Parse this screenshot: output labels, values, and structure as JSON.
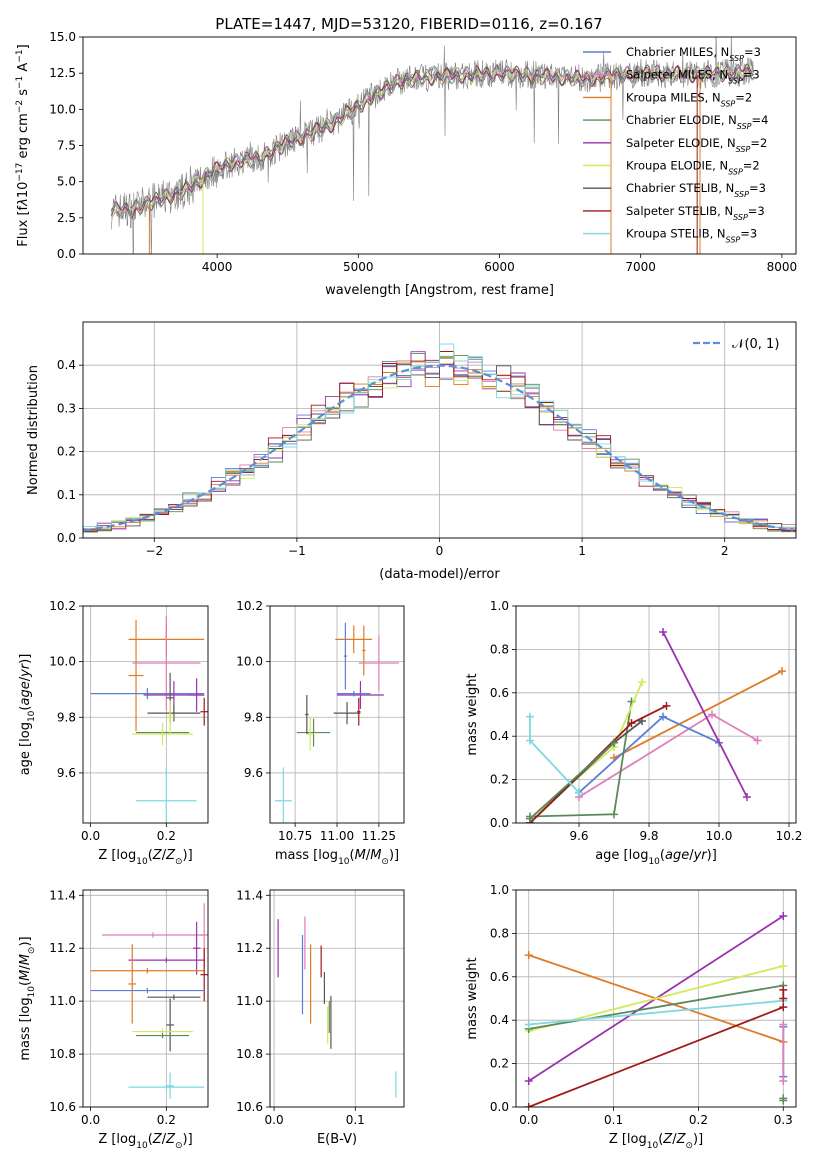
{
  "chart_data": [
    {
      "id": "spectrum",
      "type": "line",
      "title": "PLATE=1447, MJD=53120, FIBERID=0116, z=0.167",
      "xlabel": "wavelength [Angstrom, rest frame]",
      "ylabel_html": "Flux [f<tspan font-style='italic'>λ</tspan>10<tspan baseline-shift='super' font-size='9'>−17</tspan> erg cm<tspan baseline-shift='super' font-size='9'>−2</tspan> s<tspan baseline-shift='super' font-size='9'>−1</tspan> A<tspan baseline-shift='super' font-size='9'>−1</tspan>]",
      "xlim": [
        3050,
        8100
      ],
      "ylim": [
        0,
        15
      ],
      "xticks": [
        4000,
        5000,
        6000,
        7000,
        8000
      ],
      "yticks": [
        0.0,
        2.5,
        5.0,
        7.5,
        10.0,
        12.5,
        15.0
      ],
      "grid": false,
      "legend_position": "right",
      "continuum": [
        [
          3250,
          3.0
        ],
        [
          3400,
          3.1
        ],
        [
          3600,
          3.8
        ],
        [
          3800,
          4.5
        ],
        [
          3950,
          5.6
        ],
        [
          4100,
          6.3
        ],
        [
          4300,
          6.6
        ],
        [
          4500,
          7.7
        ],
        [
          4800,
          8.9
        ],
        [
          5100,
          10.9
        ],
        [
          5300,
          12.0
        ],
        [
          5600,
          12.3
        ],
        [
          6000,
          12.5
        ],
        [
          6300,
          12.3
        ],
        [
          6600,
          12.1
        ],
        [
          7000,
          12.5
        ],
        [
          7400,
          12.4
        ],
        [
          7800,
          12.6
        ]
      ],
      "observed_color": "#7f7f7f",
      "legend": [
        {
          "label": "Chabrier MILES, N",
          "sub": "SSP",
          "suffix": "=3",
          "color": "#5c7fd6"
        },
        {
          "label": "Salpeter MILES, N",
          "sub": "SSP",
          "suffix": "=3",
          "color": "#e07cb8"
        },
        {
          "label": "Kroupa MILES, N",
          "sub": "SSP",
          "suffix": "=2",
          "color": "#e07b24"
        },
        {
          "label": "Chabrier ELODIE, N",
          "sub": "SSP",
          "suffix": "=4",
          "color": "#5a8a5a"
        },
        {
          "label": "Salpeter ELODIE, N",
          "sub": "SSP",
          "suffix": "=2",
          "color": "#9a32b0"
        },
        {
          "label": "Kroupa ELODIE, N",
          "sub": "SSP",
          "suffix": "=2",
          "color": "#d4e85a"
        },
        {
          "label": "Chabrier STELIB, N",
          "sub": "SSP",
          "suffix": "=3",
          "color": "#555555"
        },
        {
          "label": "Salpeter STELIB, N",
          "sub": "SSP",
          "suffix": "=3",
          "color": "#a01a1a"
        },
        {
          "label": "Kroupa STELIB, N",
          "sub": "SSP",
          "suffix": "=3",
          "color": "#7fd8e0"
        }
      ]
    },
    {
      "id": "residuals",
      "type": "line",
      "xlabel": "(data-model)/error",
      "ylabel": "Normed distribution",
      "xlim": [
        -2.5,
        2.5
      ],
      "ylim": [
        0,
        0.5
      ],
      "xticks": [
        -2,
        -1,
        0,
        1,
        2
      ],
      "yticks": [
        0.0,
        0.1,
        0.2,
        0.3,
        0.4
      ],
      "grid": true,
      "legend_position": "top-right",
      "gaussian_label": "𝒩(0, 1)",
      "gaussian_color": "#5b8fd6",
      "bin_width": 0.1
    },
    {
      "id": "age-vs-Z",
      "type": "scatter",
      "xlabel_html": "Z [log<tspan baseline-shift='sub' font-size='9'>10</tspan>(<tspan font-style='italic'>Z</tspan>/<tspan font-style='italic'>Z</tspan><tspan baseline-shift='sub' font-size='9'>⊙</tspan>)]",
      "ylabel_html": "age  [log<tspan baseline-shift='sub' font-size='9'>10</tspan>(<tspan font-style='italic'>age</tspan>/<tspan font-style='italic'>yr</tspan>)]",
      "xlim": [
        -0.02,
        0.31
      ],
      "ylim": [
        9.42,
        10.2
      ],
      "xticks": [
        0.0,
        0.2
      ],
      "xticklabels": [
        "0.0",
        "0.2"
      ],
      "yticks": [
        9.6,
        9.8,
        10.0,
        10.2
      ],
      "grid": true,
      "points": [
        {
          "color": "#e07b24",
          "x": 0.2,
          "xerr": 0.1,
          "y": 10.08,
          "yerr": 0.06
        },
        {
          "color": "#e07b24",
          "x": 0.12,
          "xerr": 0.02,
          "y": 9.95,
          "yerr": 0.2
        },
        {
          "color": "#e07cb8",
          "x": 0.2,
          "xerr": 0.09,
          "y": 9.995,
          "yerr": 0.17
        },
        {
          "color": "#5c7fd6",
          "x": 0.15,
          "xerr": 0.15,
          "y": 9.885,
          "yerr": 0.02
        },
        {
          "color": "#9a32b0",
          "x": 0.22,
          "xerr": 0.08,
          "y": 9.88,
          "yerr": 0.05
        },
        {
          "color": "#9a32b0",
          "x": 0.28,
          "xerr": 0.02,
          "y": 9.88,
          "yerr": 0.06
        },
        {
          "color": "#555555",
          "x": 0.22,
          "xerr": 0.07,
          "y": 9.815,
          "yerr": 0.03
        },
        {
          "color": "#555555",
          "x": 0.21,
          "xerr": 0.01,
          "y": 9.87,
          "yerr": 0.09
        },
        {
          "color": "#a01a1a",
          "x": 0.3,
          "xerr": 0.01,
          "y": 9.82,
          "yerr": 0.05
        },
        {
          "color": "#5a8a5a",
          "x": 0.19,
          "xerr": 0.07,
          "y": 9.745,
          "yerr": 0.01
        },
        {
          "color": "#d4e85a",
          "x": 0.19,
          "xerr": 0.08,
          "y": 9.74,
          "yerr": 0.04
        },
        {
          "color": "#d4e85a",
          "x": 0.21,
          "xerr": 0.01,
          "y": 9.8,
          "yerr": 0.06
        },
        {
          "color": "#7fd8e0",
          "x": 0.2,
          "xerr": 0.08,
          "y": 9.5,
          "yerr": 0.12
        }
      ]
    },
    {
      "id": "age-vs-mass",
      "type": "scatter",
      "xlabel_html": "mass [log<tspan baseline-shift='sub' font-size='9'>10</tspan>(<tspan font-style='italic'>M</tspan>/<tspan font-style='italic'>M</tspan><tspan baseline-shift='sub' font-size='9'>⊙</tspan>)]",
      "xlim": [
        10.6,
        11.4
      ],
      "ylim": [
        9.42,
        10.2
      ],
      "xticks": [
        10.75,
        11.0,
        11.25
      ],
      "xticklabels": [
        "10.75",
        "11.00",
        "11.25"
      ],
      "yticks": [
        9.6,
        9.8,
        10.0,
        10.2
      ],
      "grid": true,
      "points": [
        {
          "color": "#e07b24",
          "x": 11.1,
          "xerr": 0.11,
          "y": 10.08,
          "yerr": 0.05
        },
        {
          "color": "#e07b24",
          "x": 11.16,
          "xerr": 0.01,
          "y": 10.04,
          "yerr": 0.09
        },
        {
          "color": "#5c7fd6",
          "x": 11.05,
          "xerr": 0.01,
          "y": 10.02,
          "yerr": 0.12
        },
        {
          "color": "#e07cb8",
          "x": 11.25,
          "xerr": 0.12,
          "y": 9.995,
          "yerr": 0.1
        },
        {
          "color": "#9a32b0",
          "x": 11.14,
          "xerr": 0.14,
          "y": 9.88,
          "yerr": 0.05
        },
        {
          "color": "#5c7fd6",
          "x": 11.1,
          "xerr": 0.1,
          "y": 9.885,
          "yerr": 0.01
        },
        {
          "color": "#555555",
          "x": 11.06,
          "xerr": 0.08,
          "y": 9.815,
          "yerr": 0.04
        },
        {
          "color": "#a01a1a",
          "x": 11.13,
          "xerr": 0.01,
          "y": 9.82,
          "yerr": 0.05
        },
        {
          "color": "#5a8a5a",
          "x": 10.86,
          "xerr": 0.1,
          "y": 9.745,
          "yerr": 0.05
        },
        {
          "color": "#d4e85a",
          "x": 10.84,
          "xerr": 0.02,
          "y": 9.74,
          "yerr": 0.06
        },
        {
          "color": "#555555",
          "x": 10.82,
          "xerr": 0.01,
          "y": 9.81,
          "yerr": 0.07
        },
        {
          "color": "#7fd8e0",
          "x": 10.68,
          "xerr": 0.05,
          "y": 9.5,
          "yerr": 0.12
        }
      ]
    },
    {
      "id": "massweight-vs-age",
      "type": "line",
      "xlabel_html": "age  [log<tspan baseline-shift='sub' font-size='9'>10</tspan>(<tspan font-style='italic'>age</tspan>/<tspan font-style='italic'>yr</tspan>)]",
      "ylabel": "mass weight",
      "xlim": [
        9.42,
        10.22
      ],
      "ylim": [
        0,
        1.0
      ],
      "xticks": [
        9.6,
        9.8,
        10.0,
        10.2
      ],
      "yticks": [
        0.0,
        0.2,
        0.4,
        0.6,
        0.8,
        1.0
      ],
      "grid": true,
      "series": [
        {
          "color": "#e07b24",
          "x": [
            9.7,
            10.18
          ],
          "y": [
            0.3,
            0.7
          ]
        },
        {
          "color": "#e07cb8",
          "x": [
            9.6,
            9.98,
            10.11
          ],
          "y": [
            0.12,
            0.5,
            0.38
          ]
        },
        {
          "color": "#5c7fd6",
          "x": [
            9.6,
            9.84,
            10.0
          ],
          "y": [
            0.14,
            0.49,
            0.37
          ]
        },
        {
          "color": "#9a32b0",
          "x": [
            9.84,
            10.08
          ],
          "y": [
            0.88,
            0.12
          ]
        },
        {
          "color": "#5a8a5a",
          "x": [
            9.46,
            9.7,
            9.75
          ],
          "y": [
            0.03,
            0.04,
            0.56
          ]
        },
        {
          "color": "#d4e85a",
          "x": [
            9.46,
            9.7,
            9.78
          ],
          "y": [
            0.02,
            0.35,
            0.65
          ]
        },
        {
          "color": "#555555",
          "x": [
            9.46,
            9.7,
            9.78
          ],
          "y": [
            0.0,
            0.37,
            0.47
          ]
        },
        {
          "color": "#a01a1a",
          "x": [
            9.46,
            9.75,
            9.85
          ],
          "y": [
            0.0,
            0.46,
            0.54
          ]
        },
        {
          "color": "#5a8a5a",
          "x": [
            9.46,
            9.7
          ],
          "y": [
            0.02,
            0.37
          ]
        },
        {
          "color": "#7fd8e0",
          "x": [
            9.46,
            9.46,
            9.6
          ],
          "y": [
            0.49,
            0.38,
            0.14
          ]
        }
      ]
    },
    {
      "id": "mass-vs-Z",
      "type": "scatter",
      "xlabel_html": "Z [log<tspan baseline-shift='sub' font-size='9'>10</tspan>(<tspan font-style='italic'>Z</tspan>/<tspan font-style='italic'>Z</tspan><tspan baseline-shift='sub' font-size='9'>⊙</tspan>)]",
      "ylabel_html": "mass [log<tspan baseline-shift='sub' font-size='9'>10</tspan>(<tspan font-style='italic'>M</tspan>/<tspan font-style='italic'>M</tspan><tspan baseline-shift='sub' font-size='9'>⊙</tspan>)]",
      "xlim": [
        -0.02,
        0.31
      ],
      "ylim": [
        10.6,
        11.42
      ],
      "xticks": [
        0.0,
        0.2
      ],
      "xticklabels": [
        "0.0",
        "0.2"
      ],
      "yticks": [
        10.6,
        10.8,
        11.0,
        11.2,
        11.4
      ],
      "grid": true,
      "points": [
        {
          "color": "#e07cb8",
          "x": 0.165,
          "xerr": 0.135,
          "y": 11.25,
          "yerr": 0.01
        },
        {
          "color": "#e07cb8",
          "x": 0.3,
          "xerr": 0.01,
          "y": 11.25,
          "yerr": 0.12
        },
        {
          "color": "#9a32b0",
          "x": 0.2,
          "xerr": 0.1,
          "y": 11.155,
          "yerr": 0.01
        },
        {
          "color": "#9a32b0",
          "x": 0.28,
          "xerr": 0.01,
          "y": 11.2,
          "yerr": 0.1
        },
        {
          "color": "#e07b24",
          "x": 0.15,
          "xerr": 0.15,
          "y": 11.115,
          "yerr": 0.01
        },
        {
          "color": "#e07b24",
          "x": 0.11,
          "xerr": 0.01,
          "y": 11.065,
          "yerr": 0.15
        },
        {
          "color": "#a01a1a",
          "x": 0.3,
          "xerr": 0.01,
          "y": 11.1,
          "yerr": 0.1
        },
        {
          "color": "#5c7fd6",
          "x": 0.15,
          "xerr": 0.15,
          "y": 11.04,
          "yerr": 0.01
        },
        {
          "color": "#555555",
          "x": 0.22,
          "xerr": 0.07,
          "y": 11.015,
          "yerr": 0.01
        },
        {
          "color": "#555555",
          "x": 0.21,
          "xerr": 0.01,
          "y": 10.91,
          "yerr": 0.1
        },
        {
          "color": "#d4e85a",
          "x": 0.19,
          "xerr": 0.08,
          "y": 10.885,
          "yerr": 0.01
        },
        {
          "color": "#5a8a5a",
          "x": 0.19,
          "xerr": 0.07,
          "y": 10.87,
          "yerr": 0.01
        },
        {
          "color": "#7fd8e0",
          "x": 0.2,
          "xerr": 0.1,
          "y": 10.675,
          "yerr": 0.01
        },
        {
          "color": "#7fd8e0",
          "x": 0.21,
          "xerr": 0.01,
          "y": 10.68,
          "yerr": 0.05
        }
      ]
    },
    {
      "id": "mass-vs-EBV",
      "type": "scatter",
      "xlabel": "E(B-V)",
      "xlim": [
        -0.005,
        0.16
      ],
      "ylim": [
        10.6,
        11.42
      ],
      "xticks": [
        0.0,
        0.1
      ],
      "xticklabels": [
        "0.0",
        "0.1"
      ],
      "yticks": [
        10.6,
        10.8,
        11.0,
        11.2,
        11.4
      ],
      "grid": true,
      "points": [
        {
          "color": "#9a32b0",
          "x": 0.005,
          "xerr": 0.0,
          "y": 11.2,
          "yerr": 0.11
        },
        {
          "color": "#e07cb8",
          "x": 0.038,
          "xerr": 0.0,
          "y": 11.22,
          "yerr": 0.1
        },
        {
          "color": "#5c7fd6",
          "x": 0.035,
          "xerr": 0.0,
          "y": 11.1,
          "yerr": 0.15
        },
        {
          "color": "#e07b24",
          "x": 0.045,
          "xerr": 0.0,
          "y": 11.065,
          "yerr": 0.15
        },
        {
          "color": "#a01a1a",
          "x": 0.058,
          "xerr": 0.0,
          "y": 11.15,
          "yerr": 0.06
        },
        {
          "color": "#555555",
          "x": 0.062,
          "xerr": 0.0,
          "y": 11.05,
          "yerr": 0.06
        },
        {
          "color": "#5a8a5a",
          "x": 0.068,
          "xerr": 0.0,
          "y": 10.94,
          "yerr": 0.06
        },
        {
          "color": "#d4e85a",
          "x": 0.066,
          "xerr": 0.0,
          "y": 10.91,
          "yerr": 0.07
        },
        {
          "color": "#555555",
          "x": 0.07,
          "xerr": 0.0,
          "y": 10.92,
          "yerr": 0.1
        },
        {
          "color": "#7fd8e0",
          "x": 0.15,
          "xerr": 0.0,
          "y": 10.685,
          "yerr": 0.05
        }
      ]
    },
    {
      "id": "massweight-vs-Z",
      "type": "line",
      "xlabel_html": "Z [log<tspan baseline-shift='sub' font-size='9'>10</tspan>(<tspan font-style='italic'>Z</tspan>/<tspan font-style='italic'>Z</tspan><tspan baseline-shift='sub' font-size='9'>⊙</tspan>)]",
      "ylabel": "mass weight",
      "xlim": [
        -0.015,
        0.315
      ],
      "ylim": [
        0,
        1.0
      ],
      "xticks": [
        0.0,
        0.1,
        0.2,
        0.3
      ],
      "xticklabels": [
        "0.0",
        "0.1",
        "0.2",
        "0.3"
      ],
      "yticks": [
        0.0,
        0.2,
        0.4,
        0.6,
        0.8,
        1.0
      ],
      "grid": true,
      "series": [
        {
          "color": "#9a32b0",
          "x": [
            0.0,
            0.3
          ],
          "y": [
            0.12,
            0.88
          ]
        },
        {
          "color": "#e07b24",
          "x": [
            0.0,
            0.3
          ],
          "y": [
            0.7,
            0.3
          ]
        },
        {
          "color": "#d4e85a",
          "x": [
            0.0,
            0.3
          ],
          "y": [
            0.35,
            0.65
          ]
        },
        {
          "color": "#5a8a5a",
          "x": [
            0.0,
            0.3
          ],
          "y": [
            0.36,
            0.56
          ]
        },
        {
          "color": "#7fd8e0",
          "x": [
            0.0,
            0.3
          ],
          "y": [
            0.38,
            0.49
          ]
        },
        {
          "color": "#a01a1a",
          "x": [
            0.0,
            0.3
          ],
          "y": [
            0.0,
            0.46
          ]
        },
        {
          "color": "#5c7fd6",
          "x": [
            0.3,
            0.3
          ],
          "y": [
            0.14,
            0.37
          ]
        },
        {
          "color": "#e07cb8",
          "x": [
            0.3,
            0.3
          ],
          "y": [
            0.12,
            0.38
          ]
        },
        {
          "color": "#5a8a5a",
          "x": [
            0.3,
            0.3
          ],
          "y": [
            0.03,
            0.04
          ]
        },
        {
          "color": "#a01a1a",
          "x": [
            0.3,
            0.3
          ],
          "y": [
            0.5,
            0.54
          ]
        }
      ]
    }
  ]
}
